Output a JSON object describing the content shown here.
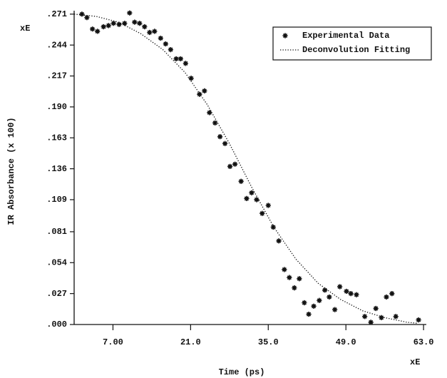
{
  "chart_data": {
    "type": "scatter",
    "x_label": "Time (ps)",
    "y_label": "IR Absorbance (x 100)",
    "y_exponent_label": "xE",
    "x_exponent_label": "xE",
    "xlim": [
      0,
      63.5
    ],
    "ylim": [
      0,
      0.274
    ],
    "xticks": [
      {
        "value": 7,
        "label": "7.00"
      },
      {
        "value": 21,
        "label": "21.0"
      },
      {
        "value": 35,
        "label": "35.0"
      },
      {
        "value": 49,
        "label": "49.0"
      },
      {
        "value": 63,
        "label": "63.0"
      }
    ],
    "yticks": [
      {
        "value": 0,
        "label": ".000"
      },
      {
        "value": 0.027,
        "label": ".027"
      },
      {
        "value": 0.054,
        "label": ".054"
      },
      {
        "value": 0.081,
        "label": ".081"
      },
      {
        "value": 0.109,
        "label": ".109"
      },
      {
        "value": 0.136,
        "label": ".136"
      },
      {
        "value": 0.163,
        "label": ".163"
      },
      {
        "value": 0.19,
        "label": ".190"
      },
      {
        "value": 0.217,
        "label": ".217"
      },
      {
        "value": 0.244,
        "label": ".244"
      },
      {
        "value": 0.271,
        "label": ".271"
      }
    ],
    "legend": "upper right",
    "series": [
      {
        "name": "Experimental Data",
        "marker": "asterisk",
        "color": "#111111",
        "x": [
          1.4,
          2.3,
          3.3,
          4.2,
          5.3,
          6.2,
          7.1,
          8.1,
          9.1,
          10.0,
          10.9,
          11.8,
          12.7,
          13.6,
          14.5,
          15.6,
          16.5,
          17.4,
          18.4,
          19.2,
          20.1,
          21.1,
          22.6,
          23.5,
          24.4,
          25.4,
          26.3,
          27.2,
          28.1,
          29.0,
          30.1,
          31.1,
          32.0,
          32.9,
          33.9,
          35.0,
          35.9,
          36.9,
          37.9,
          38.8,
          39.7,
          40.6,
          41.5,
          42.3,
          43.2,
          44.2,
          45.2,
          46.0,
          47.0,
          47.9,
          49.1,
          49.9,
          50.9,
          52.4,
          53.5,
          54.4,
          55.4,
          56.3,
          57.3,
          58.0,
          62.1
        ],
        "values": [
          0.271,
          0.268,
          0.258,
          0.256,
          0.26,
          0.261,
          0.263,
          0.262,
          0.263,
          0.272,
          0.264,
          0.263,
          0.26,
          0.255,
          0.256,
          0.25,
          0.245,
          0.24,
          0.232,
          0.232,
          0.228,
          0.215,
          0.201,
          0.204,
          0.185,
          0.176,
          0.164,
          0.158,
          0.138,
          0.14,
          0.125,
          0.11,
          0.115,
          0.109,
          0.097,
          0.104,
          0.085,
          0.073,
          0.048,
          0.041,
          0.032,
          0.04,
          0.019,
          0.009,
          0.016,
          0.021,
          0.03,
          0.024,
          0.013,
          0.033,
          0.029,
          0.027,
          0.026,
          0.007,
          0.002,
          0.014,
          0.006,
          0.024,
          0.027,
          0.007,
          0.004
        ]
      },
      {
        "name": "Deconvolution Fitting",
        "line_style": "dotted",
        "color": "#111111",
        "x": [
          0,
          4,
          8,
          12,
          16,
          20,
          24,
          28,
          32,
          36,
          40,
          44,
          48,
          52,
          56,
          60,
          62
        ],
        "values": [
          0.271,
          0.269,
          0.264,
          0.254,
          0.24,
          0.22,
          0.192,
          0.158,
          0.12,
          0.085,
          0.057,
          0.036,
          0.022,
          0.012,
          0.006,
          0.002,
          0.001
        ]
      }
    ]
  }
}
